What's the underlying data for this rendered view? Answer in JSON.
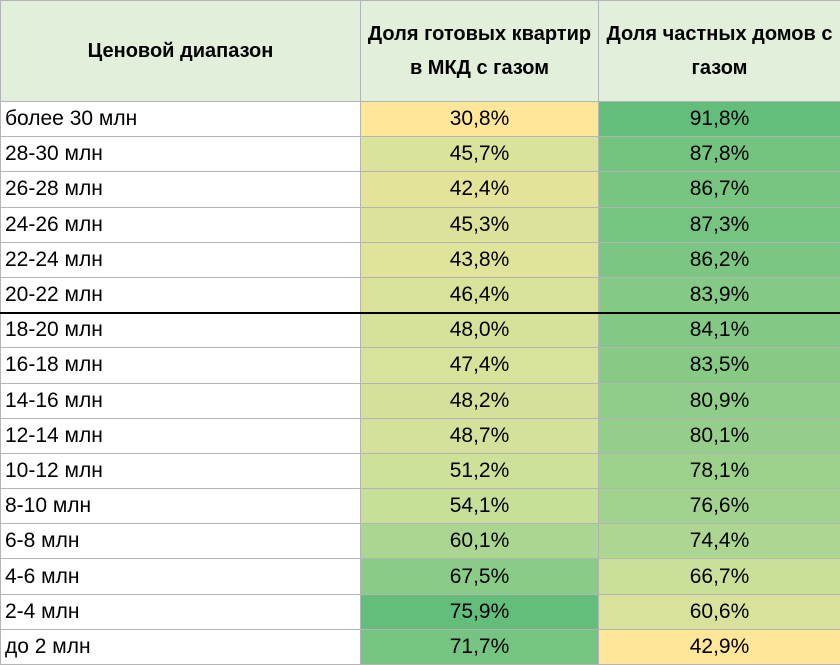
{
  "chart_data": {
    "type": "table",
    "columns": [
      "Ценовой диапазон",
      "Доля готовых квартир в МКД с газом",
      "Доля частных домов с газом"
    ],
    "rows": [
      {
        "range": "более 30 млн",
        "apartments": "30,8%",
        "houses": "91,8%",
        "apartments_value": 30.8,
        "houses_value": 91.8
      },
      {
        "range": "28-30 млн",
        "apartments": "45,7%",
        "houses": "87,8%",
        "apartments_value": 45.7,
        "houses_value": 87.8
      },
      {
        "range": "26-28 млн",
        "apartments": "42,4%",
        "houses": "86,7%",
        "apartments_value": 42.4,
        "houses_value": 86.7
      },
      {
        "range": "24-26 млн",
        "apartments": "45,3%",
        "houses": "87,3%",
        "apartments_value": 45.3,
        "houses_value": 87.3
      },
      {
        "range": "22-24 млн",
        "apartments": "43,8%",
        "houses": "86,2%",
        "apartments_value": 43.8,
        "houses_value": 86.2
      },
      {
        "range": "20-22 млн",
        "apartments": "46,4%",
        "houses": "83,9%",
        "apartments_value": 46.4,
        "houses_value": 83.9
      },
      {
        "range": "18-20 млн",
        "apartments": "48,0%",
        "houses": "84,1%",
        "apartments_value": 48.0,
        "houses_value": 84.1
      },
      {
        "range": "16-18 млн",
        "apartments": "47,4%",
        "houses": "83,5%",
        "apartments_value": 47.4,
        "houses_value": 83.5
      },
      {
        "range": "14-16 млн",
        "apartments": "48,2%",
        "houses": "80,9%",
        "apartments_value": 48.2,
        "houses_value": 80.9
      },
      {
        "range": "12-14 млн",
        "apartments": "48,7%",
        "houses": "80,1%",
        "apartments_value": 48.7,
        "houses_value": 80.1
      },
      {
        "range": "10-12 млн",
        "apartments": "51,2%",
        "houses": "78,1%",
        "apartments_value": 51.2,
        "houses_value": 78.1
      },
      {
        "range": "8-10 млн",
        "apartments": "54,1%",
        "houses": "76,6%",
        "apartments_value": 54.1,
        "houses_value": 76.6
      },
      {
        "range": "6-8 млн",
        "apartments": "60,1%",
        "houses": "74,4%",
        "apartments_value": 60.1,
        "houses_value": 74.4
      },
      {
        "range": "4-6 млн",
        "apartments": "67,5%",
        "houses": "66,7%",
        "apartments_value": 67.5,
        "houses_value": 66.7
      },
      {
        "range": "2-4 млн",
        "apartments": "75,9%",
        "houses": "60,6%",
        "apartments_value": 75.9,
        "houses_value": 60.6
      },
      {
        "range": "до 2 млн",
        "apartments": "71,7%",
        "houses": "42,9%",
        "apartments_value": 71.7,
        "houses_value": 42.9
      }
    ],
    "color_scale": {
      "low": "#ffe699",
      "mid": "#c9e09a",
      "high": "#63be7b"
    },
    "header_background": "#e2efda",
    "thick_border_above_row": 6
  }
}
